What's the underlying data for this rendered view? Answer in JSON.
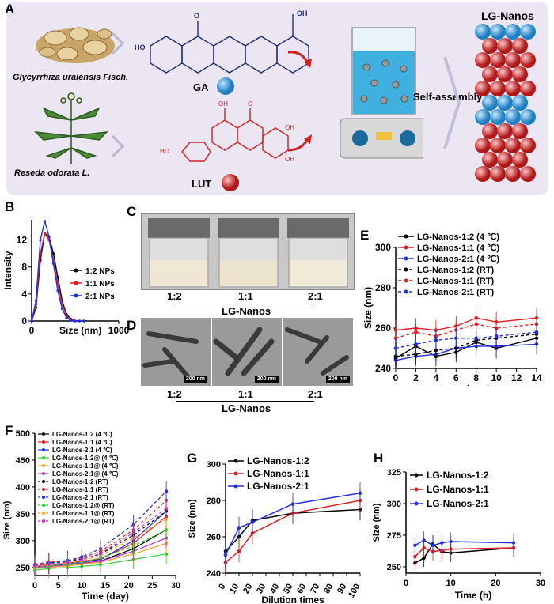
{
  "panelA": {
    "label": "A",
    "plant1": "Glycyrrhiza uralensis Fisch.",
    "plant2": "Reseda odorata L.",
    "ga": "GA",
    "lut": "LUT",
    "selfassembly": "Self-assembly",
    "product": "LG-Nanos",
    "colors": {
      "ga": "#3aa0d8",
      "lut": "#e23a3a",
      "red_struct": "#e33"
    }
  },
  "panelB": {
    "label": "B",
    "ylabel": "Intensity",
    "xlabel": "Size (nm)",
    "yticks": [
      "0",
      "4",
      "8",
      "12"
    ],
    "xticks": [
      "0",
      "1000"
    ],
    "legend": [
      "1:2 NPs",
      "1:1 NPs",
      "2:1 NPs"
    ]
  },
  "panelC": {
    "label": "C",
    "ratios": [
      "1:2",
      "1:1",
      "2:1"
    ],
    "group": "LG-Nanos"
  },
  "panelD": {
    "label": "D",
    "ratios": [
      "1:2",
      "1:1",
      "2:1"
    ],
    "group": "LG-Nanos",
    "scale": "200 nm"
  },
  "panelE": {
    "label": "E",
    "ylabel": "Size (nm)",
    "xlabel": "Time（day）",
    "yticks": [
      "240",
      "260",
      "280",
      "300"
    ],
    "xticks": [
      "0",
      "2",
      "4",
      "6",
      "8",
      "10",
      "12",
      "14"
    ],
    "legend": [
      "LG-Nanos-1:2 (4 ℃)",
      "LG-Nanos-1:1 (4 ℃)",
      "LG-Nanos-2:1 (4 ℃)",
      "LG-Nanos-1:2 (RT)",
      "LG-Nanos-1:1 (RT)",
      "LG-Nanos-2:1 (RT)"
    ]
  },
  "panelF": {
    "label": "F",
    "ylabel": "Size (nm)",
    "xlabel": "Time (day)",
    "yticks": [
      "250",
      "300",
      "350",
      "400",
      "450",
      "500"
    ],
    "xticks": [
      "0",
      "5",
      "10",
      "15",
      "20",
      "25",
      "30"
    ],
    "legend": [
      "LG-Nanos-1:2 (4 ℃)",
      "LG-Nanos-1:1 (4 ℃)",
      "LG-Nanos-2:1 (4 ℃)",
      "LG-Nanos-1:2@ (4 ℃)",
      "LG-Nanos-1:1@ (4 ℃)",
      "LG-Nanos-2:1@ (4 ℃)",
      "LG-Nanos-1:2 (RT)",
      "LG-Nanos-1:1 (RT)",
      "LG-Nanos-2:1 (RT)",
      "LG-Nanos-1:2@ (RT)",
      "LG-Nanos-1:1@ (RT)",
      "LG-Nanos-2:1@ (RT)"
    ]
  },
  "panelG": {
    "label": "G",
    "ylabel": "Size (nm)",
    "xlabel": "Dilution times",
    "yticks": [
      "240",
      "260",
      "280",
      "300"
    ],
    "xticks": [
      "0",
      "10",
      "20",
      "30",
      "40",
      "50",
      "60",
      "70",
      "80",
      "90",
      "100"
    ],
    "legend": [
      "LG-Nanos-1:2",
      "LG-Nanos-1:1",
      "LG-Nanos-2:1"
    ]
  },
  "panelH": {
    "label": "H",
    "ylabel": "Size (nm)",
    "xlabel": "Time (h)",
    "yticks": [
      "250",
      "275",
      "300",
      "325"
    ],
    "xticks": [
      "0",
      "10",
      "20",
      "30"
    ],
    "legend": [
      "LG-Nanos-1:2",
      "LG-Nanos-1:1",
      "LG-Nanos-2:1"
    ]
  },
  "chart_data": [
    {
      "id": "B",
      "type": "line",
      "x": [
        0,
        50,
        100,
        150,
        200,
        250,
        300,
        350,
        400,
        450,
        500,
        550,
        600
      ],
      "series": [
        {
          "name": "1:2 NPs",
          "color": "#000000",
          "values": [
            0,
            2,
            9,
            13,
            12.5,
            10,
            6.5,
            3,
            1,
            0.3,
            0,
            0,
            0
          ]
        },
        {
          "name": "1:1 NPs",
          "color": "#e02020",
          "values": [
            0,
            2.5,
            10,
            13,
            12,
            9,
            5.5,
            2.5,
            0.8,
            0.2,
            0,
            0,
            0
          ]
        },
        {
          "name": "2:1 NPs",
          "color": "#2030e0",
          "values": [
            0,
            3,
            12,
            14.8,
            12.5,
            8.5,
            4.5,
            1.8,
            0.5,
            0.1,
            0,
            0,
            0
          ]
        }
      ],
      "xlim": [
        0,
        1000
      ],
      "ylim": [
        0,
        15
      ],
      "xlabel": "Size (nm)",
      "ylabel": "Intensity"
    },
    {
      "id": "E",
      "type": "line",
      "x": [
        0,
        2,
        4,
        6,
        8,
        10,
        14
      ],
      "series": [
        {
          "name": "LG-Nanos-1:2 (4 ℃)",
          "color": "#000000",
          "dash": false,
          "values": [
            245,
            251,
            246,
            248,
            253,
            250,
            255
          ]
        },
        {
          "name": "LG-Nanos-1:1 (4 ℃)",
          "color": "#e02020",
          "dash": false,
          "values": [
            259,
            260,
            259,
            261,
            265,
            263,
            265
          ]
        },
        {
          "name": "LG-Nanos-2:1 (4 ℃)",
          "color": "#2030e0",
          "dash": false,
          "values": [
            244,
            246,
            247,
            250,
            251,
            251,
            252
          ]
        },
        {
          "name": "LG-Nanos-1:2 (RT)",
          "color": "#000000",
          "dash": true,
          "values": [
            246,
            247,
            249,
            250,
            254,
            255,
            257
          ]
        },
        {
          "name": "LG-Nanos-1:1 (RT)",
          "color": "#e02020",
          "dash": true,
          "values": [
            255,
            258,
            256,
            259,
            262,
            260,
            262
          ]
        },
        {
          "name": "LG-Nanos-2:1 (RT)",
          "color": "#2030e0",
          "dash": true,
          "values": [
            250,
            252,
            254,
            255,
            255,
            256,
            258
          ]
        }
      ],
      "xlim": [
        0,
        14
      ],
      "ylim": [
        240,
        300
      ],
      "xlabel": "Time（day）",
      "ylabel": "Size (nm)"
    },
    {
      "id": "F",
      "type": "line",
      "x": [
        0,
        3,
        7,
        10,
        14,
        21,
        28
      ],
      "series": [
        {
          "name": "LG-Nanos-1:2 (4 ℃)",
          "color": "#000000",
          "dash": false,
          "values": [
            250,
            252,
            255,
            258,
            262,
            285,
            320
          ]
        },
        {
          "name": "LG-Nanos-1:1 (4 ℃)",
          "color": "#e02020",
          "dash": false,
          "values": [
            252,
            255,
            258,
            262,
            266,
            295,
            345
          ]
        },
        {
          "name": "LG-Nanos-2:1 (4 ℃)",
          "color": "#2030e0",
          "dash": false,
          "values": [
            250,
            253,
            256,
            260,
            265,
            300,
            355
          ]
        },
        {
          "name": "LG-Nanos-1:2@ (4 ℃)",
          "color": "#30d030",
          "dash": false,
          "values": [
            245,
            248,
            250,
            252,
            255,
            265,
            275
          ]
        },
        {
          "name": "LG-Nanos-1:1@ (4 ℃)",
          "color": "#f0a030",
          "dash": false,
          "values": [
            248,
            250,
            253,
            256,
            260,
            275,
            295
          ]
        },
        {
          "name": "LG-Nanos-2:1@ (4 ℃)",
          "color": "#c030c0",
          "dash": false,
          "values": [
            250,
            252,
            255,
            258,
            262,
            280,
            305
          ]
        },
        {
          "name": "LG-Nanos-1:2 (RT)",
          "color": "#000000",
          "dash": true,
          "values": [
            255,
            258,
            262,
            266,
            275,
            310,
            355
          ]
        },
        {
          "name": "LG-Nanos-1:1 (RT)",
          "color": "#e02020",
          "dash": true,
          "values": [
            256,
            260,
            263,
            268,
            280,
            320,
            375
          ]
        },
        {
          "name": "LG-Nanos-2:1 (RT)",
          "color": "#2030e0",
          "dash": true,
          "values": [
            255,
            258,
            263,
            270,
            285,
            330,
            392
          ]
        },
        {
          "name": "LG-Nanos-1:2@ (RT)",
          "color": "#30d030",
          "dash": true,
          "values": [
            250,
            253,
            256,
            260,
            268,
            290,
            320
          ]
        },
        {
          "name": "LG-Nanos-1:1@ (RT)",
          "color": "#f0a030",
          "dash": true,
          "values": [
            252,
            255,
            258,
            263,
            272,
            305,
            340
          ]
        },
        {
          "name": "LG-Nanos-2:1@ (RT)",
          "color": "#c030c0",
          "dash": true,
          "values": [
            253,
            256,
            260,
            265,
            276,
            315,
            360
          ]
        }
      ],
      "xlim": [
        0,
        30
      ],
      "ylim": [
        235,
        500
      ],
      "xlabel": "Time (day)",
      "ylabel": "Size (nm)"
    },
    {
      "id": "G",
      "type": "line",
      "x": [
        0,
        10,
        20,
        50,
        100
      ],
      "series": [
        {
          "name": "LG-Nanos-1:2",
          "color": "#000000",
          "values": [
            252,
            260,
            269,
            273,
            275
          ]
        },
        {
          "name": "LG-Nanos-1:1",
          "color": "#e02020",
          "values": [
            246,
            252,
            262,
            273,
            280
          ]
        },
        {
          "name": "LG-Nanos-2:1",
          "color": "#2030e0",
          "values": [
            250,
            265,
            268,
            278,
            284
          ]
        }
      ],
      "xlim": [
        0,
        100
      ],
      "ylim": [
        240,
        300
      ],
      "xlabel": "Dilution times",
      "ylabel": "Size (nm)"
    },
    {
      "id": "H",
      "type": "line",
      "x": [
        2,
        4,
        6,
        8,
        10,
        24
      ],
      "series": [
        {
          "name": "LG-Nanos-1:2",
          "color": "#000000",
          "values": [
            253,
            257,
            268,
            262,
            261,
            265
          ]
        },
        {
          "name": "LG-Nanos-1:1",
          "color": "#e02020",
          "values": [
            258,
            265,
            262,
            263,
            264,
            265
          ]
        },
        {
          "name": "LG-Nanos-2:1",
          "color": "#2030e0",
          "values": [
            267,
            271,
            267,
            269,
            270,
            269
          ]
        }
      ],
      "xlim": [
        0,
        30
      ],
      "ylim": [
        245,
        325
      ],
      "xlabel": "Time (h)",
      "ylabel": "Size (nm)"
    }
  ]
}
